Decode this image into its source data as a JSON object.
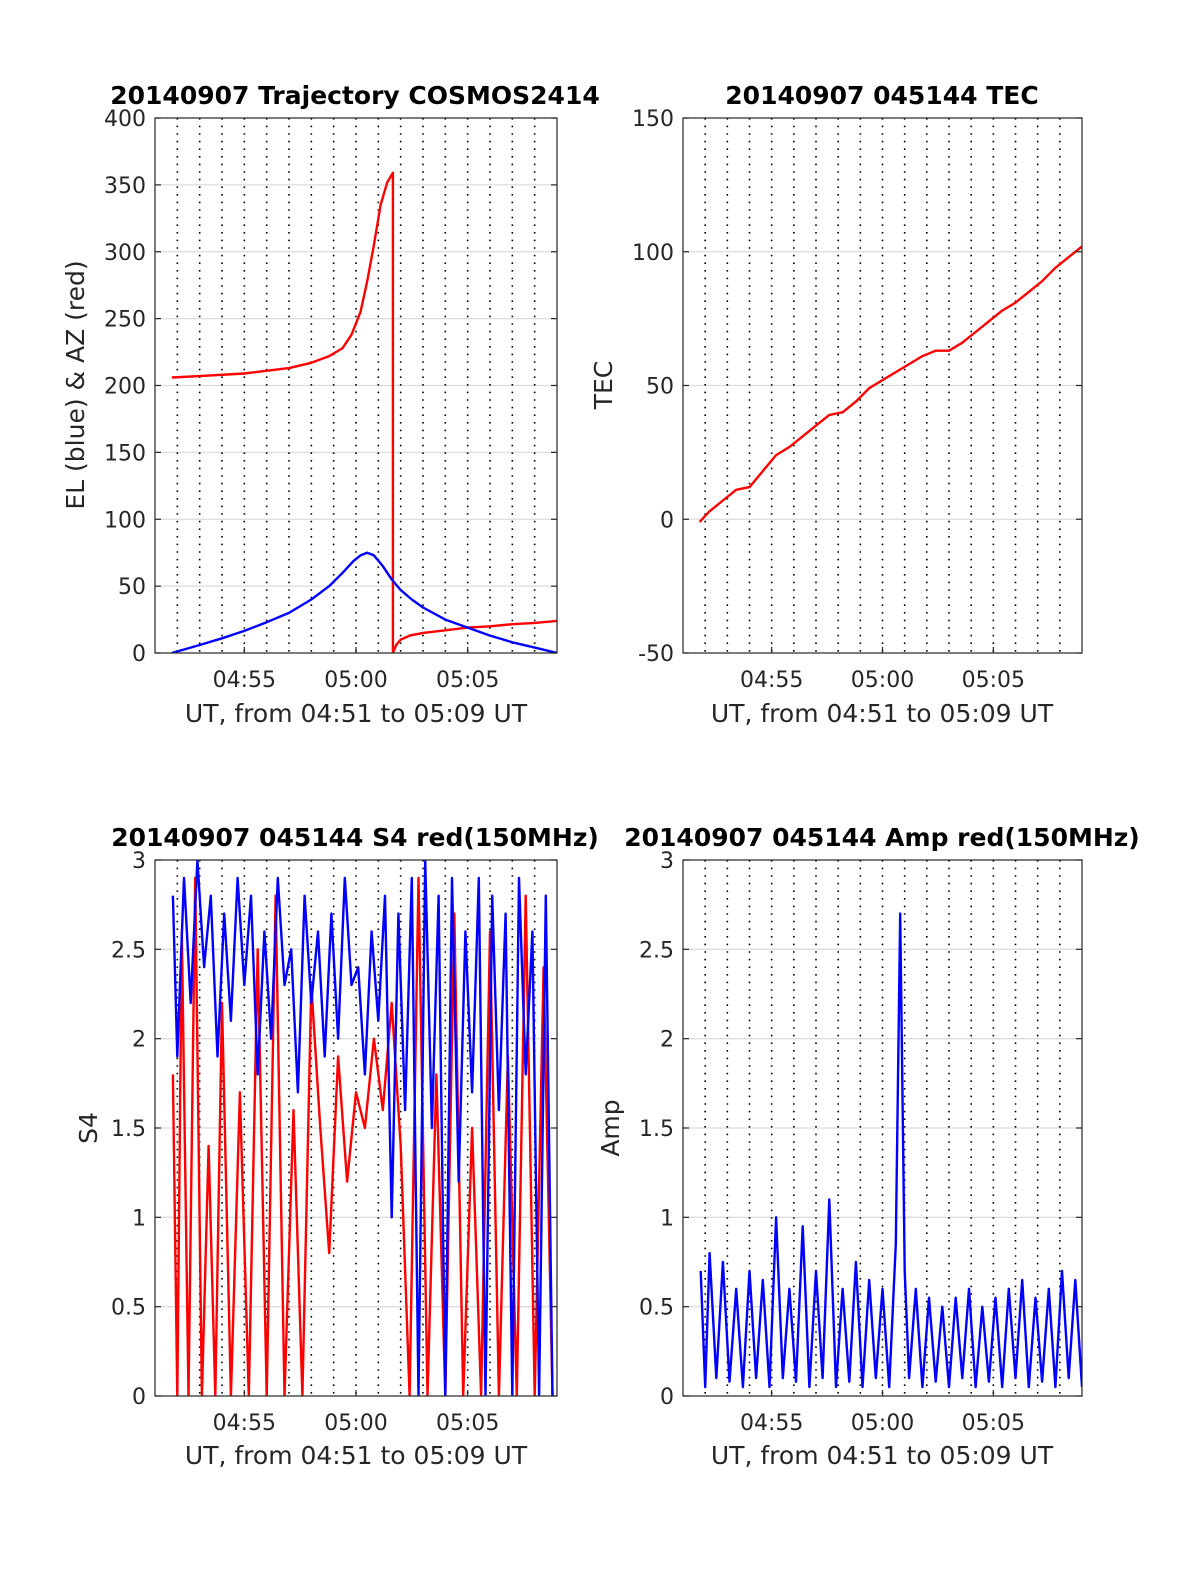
{
  "chart_data": [
    {
      "id": "trajectory",
      "type": "line",
      "title": "20140907 Trajectory COSMOS2414",
      "xlabel": "UT, from 04:51 to 05:09 UT",
      "ylabel": "EL (blue) & AZ (red)",
      "xlim_minutes": [
        4.9,
        9.0
      ],
      "x_unit_note": "x values are minutes past 04:51 UT",
      "ylim": [
        0,
        400
      ],
      "yticks": [
        0,
        50,
        100,
        150,
        200,
        250,
        300,
        350,
        400
      ],
      "xticks": [
        {
          "value": 4,
          "label": "04:55"
        },
        {
          "value": 9,
          "label": "05:00"
        },
        {
          "value": 14,
          "label": "05:05"
        }
      ],
      "grid": true,
      "series": [
        {
          "color": "#ff0000",
          "x": [
            0.75,
            2.0,
            4.0,
            6.0,
            7.0,
            7.8,
            8.4,
            8.8,
            9.2,
            9.5,
            9.8,
            10.1,
            10.4,
            10.65,
            10.65,
            10.8,
            11.0,
            11.4,
            12.0,
            13.0,
            14.0,
            15.0,
            16.0,
            17.0,
            18.0
          ],
          "y": [
            206,
            207,
            209,
            213,
            217,
            222,
            228,
            238,
            255,
            278,
            305,
            335,
            352,
            359,
            0,
            6,
            10,
            13,
            15,
            17,
            19,
            20,
            21.5,
            22.5,
            24
          ]
        },
        {
          "color": "#0000ff",
          "x": [
            0.75,
            2.0,
            3.0,
            4.0,
            5.0,
            6.0,
            7.0,
            7.8,
            8.4,
            8.9,
            9.2,
            9.5,
            9.8,
            10.2,
            10.6,
            11.0,
            11.5,
            12.0,
            13.0,
            14.0,
            15.0,
            16.0,
            17.0,
            18.0
          ],
          "y": [
            0,
            6,
            11,
            16.5,
            23,
            30,
            40,
            50,
            60,
            69,
            73,
            75,
            73,
            65,
            55,
            47,
            40,
            34,
            25,
            19,
            13,
            8,
            4,
            0
          ]
        }
      ]
    },
    {
      "id": "tec",
      "type": "line",
      "title": "20140907 045144 TEC",
      "xlabel": "UT, from 04:51 to 05:09 UT",
      "ylabel": "TEC",
      "ylim": [
        -50,
        150
      ],
      "yticks": [
        -50,
        0,
        50,
        100,
        150
      ],
      "xticks": [
        {
          "value": 4,
          "label": "04:55"
        },
        {
          "value": 9,
          "label": "05:00"
        },
        {
          "value": 14,
          "label": "05:05"
        }
      ],
      "grid": true,
      "series": [
        {
          "color": "#ff0000",
          "x": [
            0.75,
            1.2,
            1.8,
            2.4,
            3.0,
            3.6,
            4.2,
            4.8,
            5.4,
            6.0,
            6.6,
            7.2,
            7.8,
            8.4,
            9.0,
            9.6,
            10.2,
            10.8,
            11.4,
            12.0,
            12.6,
            13.2,
            13.8,
            14.4,
            15.0,
            15.6,
            16.2,
            16.8,
            17.4,
            18.0
          ],
          "y": [
            -1,
            3,
            7,
            11,
            12,
            18,
            24,
            27,
            31,
            35,
            39,
            40,
            44,
            49,
            52,
            55,
            58,
            61,
            63,
            63,
            66,
            70,
            74,
            78,
            81,
            85,
            89,
            94,
            98,
            102
          ]
        }
      ]
    },
    {
      "id": "s4",
      "type": "line",
      "title": "20140907 045144 S4 red(150MHz)",
      "xlabel": "UT, from 04:51 to 05:09 UT",
      "ylabel": "S4",
      "ylim": [
        0,
        3
      ],
      "yticks": [
        0,
        0.5,
        1,
        1.5,
        2,
        2.5,
        3
      ],
      "xticks": [
        {
          "value": 4,
          "label": "04:55"
        },
        {
          "value": 9,
          "label": "05:00"
        },
        {
          "value": 14,
          "label": "05:05"
        }
      ],
      "grid": true,
      "series": [
        {
          "color": "#ff0000",
          "x": [
            0.8,
            1.0,
            1.2,
            1.5,
            1.8,
            2.1,
            2.4,
            2.7,
            3.0,
            3.4,
            3.8,
            4.2,
            4.6,
            5.0,
            5.4,
            5.8,
            6.2,
            6.6,
            7.0,
            7.4,
            7.8,
            8.2,
            8.6,
            9.0,
            9.4,
            9.8,
            10.2,
            10.6,
            11.0,
            11.4,
            11.8,
            12.2,
            12.6,
            13.0,
            13.4,
            13.8,
            14.2,
            14.6,
            15.0,
            15.4,
            15.8,
            16.2,
            16.6,
            17.0,
            17.4,
            17.8
          ],
          "y": [
            1.8,
            0.0,
            2.6,
            0.0,
            2.9,
            0.0,
            1.4,
            0.0,
            2.2,
            0.0,
            1.7,
            0.0,
            2.5,
            0.0,
            2.8,
            0.0,
            1.6,
            0.0,
            2.3,
            1.5,
            0.8,
            1.9,
            1.2,
            1.7,
            1.5,
            2.0,
            1.6,
            2.2,
            1.4,
            0.0,
            2.9,
            0.0,
            1.8,
            0.0,
            2.7,
            0.0,
            1.5,
            0.0,
            2.6,
            0.0,
            1.9,
            0.0,
            2.8,
            0.0,
            2.4,
            0.0
          ]
        },
        {
          "color": "#0000ff",
          "x": [
            0.8,
            1.0,
            1.3,
            1.6,
            1.9,
            2.2,
            2.5,
            2.8,
            3.1,
            3.4,
            3.7,
            4.0,
            4.3,
            4.6,
            4.9,
            5.2,
            5.5,
            5.8,
            6.1,
            6.4,
            6.7,
            7.0,
            7.3,
            7.6,
            7.9,
            8.2,
            8.5,
            8.8,
            9.1,
            9.4,
            9.7,
            10.0,
            10.3,
            10.6,
            10.9,
            11.2,
            11.5,
            11.8,
            12.1,
            12.4,
            12.7,
            13.0,
            13.3,
            13.6,
            13.9,
            14.2,
            14.5,
            14.8,
            15.1,
            15.4,
            15.7,
            16.0,
            16.3,
            16.6,
            16.9,
            17.2,
            17.5,
            17.8
          ],
          "y": [
            2.8,
            1.9,
            2.9,
            2.2,
            3.0,
            2.4,
            2.8,
            1.9,
            2.7,
            2.1,
            2.9,
            2.3,
            2.8,
            1.8,
            2.6,
            2.0,
            2.9,
            2.3,
            2.5,
            1.7,
            2.8,
            2.2,
            2.6,
            1.9,
            2.7,
            2.0,
            2.9,
            2.3,
            2.4,
            1.8,
            2.6,
            2.1,
            2.8,
            1.0,
            2.7,
            1.6,
            2.9,
            0.0,
            3.0,
            1.5,
            2.8,
            0.0,
            2.9,
            1.2,
            2.6,
            1.7,
            2.9,
            0.0,
            2.8,
            1.6,
            2.7,
            0.0,
            2.9,
            1.8,
            2.6,
            0.0,
            2.8,
            0.0
          ]
        }
      ]
    },
    {
      "id": "amp",
      "type": "line",
      "title": "20140907 045144 Amp red(150MHz)",
      "xlabel": "UT, from 04:51 to 05:09 UT",
      "ylabel": "Amp",
      "ylim": [
        0,
        3
      ],
      "yticks": [
        0,
        0.5,
        1,
        1.5,
        2,
        2.5,
        3
      ],
      "xticks": [
        {
          "value": 4,
          "label": "04:55"
        },
        {
          "value": 9,
          "label": "05:00"
        },
        {
          "value": 14,
          "label": "05:05"
        }
      ],
      "grid": true,
      "series": [
        {
          "color": "#0000ff",
          "x": [
            0.8,
            1.0,
            1.2,
            1.5,
            1.8,
            2.1,
            2.4,
            2.7,
            3.0,
            3.3,
            3.6,
            3.9,
            4.2,
            4.5,
            4.8,
            5.1,
            5.4,
            5.7,
            6.0,
            6.3,
            6.6,
            6.9,
            7.2,
            7.5,
            7.8,
            8.1,
            8.4,
            8.7,
            9.0,
            9.3,
            9.6,
            9.8,
            10.0,
            10.2,
            10.5,
            10.8,
            11.1,
            11.4,
            11.7,
            12.0,
            12.3,
            12.6,
            12.9,
            13.2,
            13.5,
            13.8,
            14.1,
            14.4,
            14.7,
            15.0,
            15.3,
            15.6,
            15.9,
            16.2,
            16.5,
            16.8,
            17.1,
            17.4,
            17.7,
            18.0
          ],
          "y": [
            0.7,
            0.05,
            0.8,
            0.1,
            0.75,
            0.08,
            0.6,
            0.05,
            0.7,
            0.1,
            0.65,
            0.05,
            1.0,
            0.1,
            0.6,
            0.08,
            0.95,
            0.05,
            0.7,
            0.1,
            1.1,
            0.05,
            0.6,
            0.08,
            0.75,
            0.05,
            0.65,
            0.1,
            0.6,
            0.05,
            0.85,
            2.7,
            0.7,
            0.1,
            0.6,
            0.05,
            0.55,
            0.08,
            0.5,
            0.05,
            0.55,
            0.1,
            0.6,
            0.05,
            0.5,
            0.08,
            0.55,
            0.05,
            0.6,
            0.1,
            0.65,
            0.05,
            0.55,
            0.08,
            0.6,
            0.05,
            0.7,
            0.1,
            0.65,
            0.05
          ]
        }
      ]
    }
  ]
}
